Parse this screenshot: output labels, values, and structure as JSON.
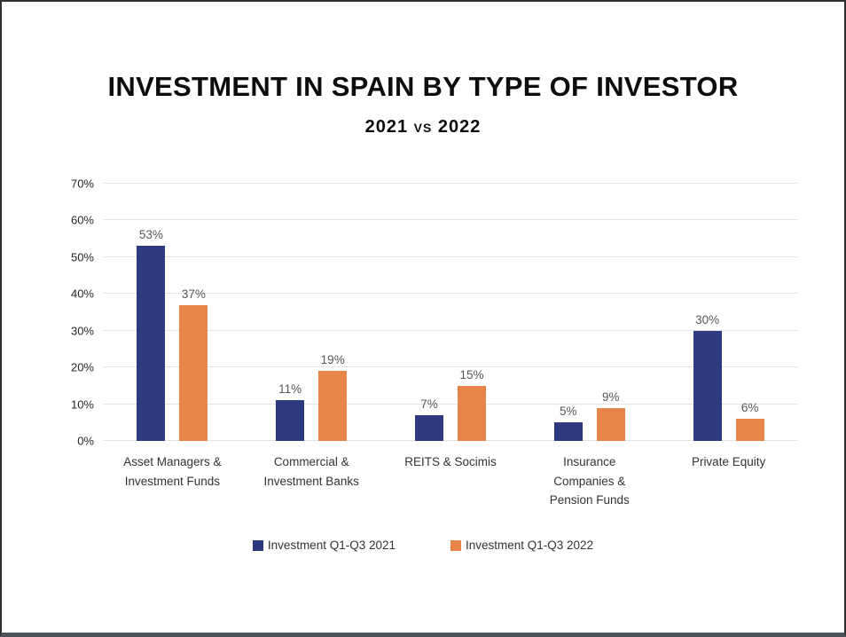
{
  "header": {
    "title": "INVESTMENT IN SPAIN BY TYPE OF INVESTOR",
    "subtitle": "2021 vs 2022"
  },
  "chart_data": {
    "type": "bar",
    "title": "INVESTMENT IN SPAIN BY TYPE OF INVESTOR",
    "subtitle": "2021 vs 2022",
    "categories": [
      "Asset Managers &\nInvestment Funds",
      "Commercial &\nInvestment Banks",
      "REITS & Socimis",
      "Insurance\nCompanies &\nPension Funds",
      "Private Equity"
    ],
    "series": [
      {
        "name": "Investment Q1-Q3 2021",
        "color": "#2e3a80",
        "values": [
          53,
          11,
          7,
          5,
          30
        ]
      },
      {
        "name": "Investment Q1-Q3 2022",
        "color": "#e8864a",
        "values": [
          37,
          19,
          15,
          9,
          6
        ]
      }
    ],
    "value_suffix": "%",
    "data_labels": true,
    "xlabel": "",
    "ylabel": "",
    "ylim": [
      0,
      70
    ],
    "yticks": [
      0,
      10,
      20,
      30,
      40,
      50,
      60,
      70
    ],
    "ytick_suffix": "%",
    "grid": true,
    "legend_position": "bottom"
  },
  "colors": {
    "gridline": "#e4e4e4",
    "data_label": "#565656",
    "frame_border": "#2e2e2e",
    "frame_bottom": "#4d545e"
  }
}
